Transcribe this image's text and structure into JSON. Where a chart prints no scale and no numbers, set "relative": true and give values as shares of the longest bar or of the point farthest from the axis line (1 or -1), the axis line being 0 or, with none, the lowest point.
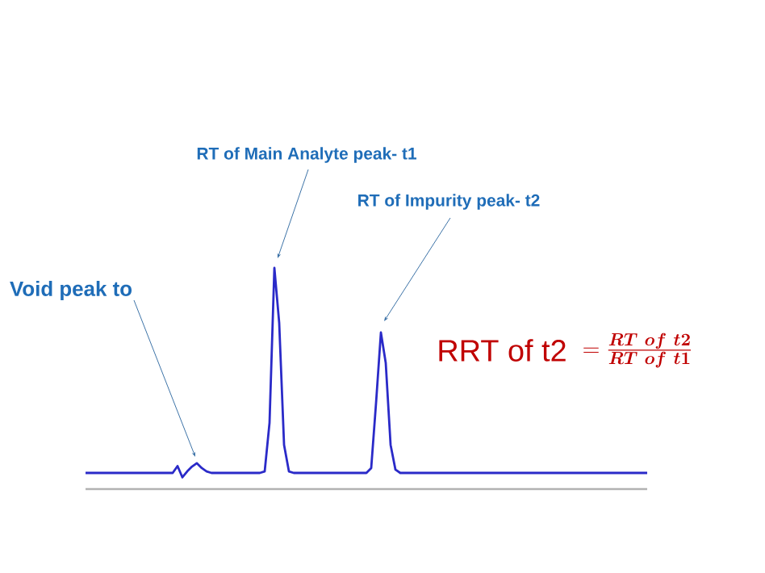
{
  "chart_data": {
    "type": "line",
    "relative": true,
    "color": "#2a2ac8",
    "marker": "none",
    "line_style": "solid",
    "categories": [
      null,
      null,
      null,
      null,
      null,
      null,
      null,
      null,
      null,
      null,
      null,
      null,
      null,
      null,
      null,
      null,
      null,
      null,
      null,
      null,
      null,
      null,
      null,
      null,
      null,
      null,
      null,
      null,
      null,
      null,
      null,
      null,
      null,
      null,
      null,
      null,
      null,
      null,
      null,
      null,
      null,
      null,
      null,
      null,
      null,
      null,
      null,
      null,
      null,
      null,
      null,
      null,
      null,
      null,
      null,
      null,
      null,
      null,
      null,
      null,
      null,
      null,
      null,
      null,
      null,
      null,
      null,
      null,
      null,
      null,
      null,
      null,
      null,
      null,
      null,
      null,
      null,
      null,
      null,
      null,
      null,
      null,
      null,
      null,
      null,
      null,
      null,
      null,
      null,
      null,
      null,
      null,
      null,
      null,
      null,
      null,
      null,
      null,
      null,
      null,
      null,
      null,
      null,
      null,
      null,
      null,
      null,
      null,
      null,
      null,
      null,
      null,
      null,
      null,
      null,
      null,
      null
    ],
    "values": [
      0.073,
      0.073,
      0.073,
      0.073,
      0.073,
      0.073,
      0.073,
      0.073,
      0.073,
      0.073,
      0.073,
      0.073,
      0.073,
      0.073,
      0.073,
      0.073,
      0.073,
      0.073,
      0.073,
      0.104,
      0.053,
      0.08,
      0.102,
      0.117,
      0.095,
      0.08,
      0.073,
      0.073,
      0.073,
      0.073,
      0.073,
      0.073,
      0.073,
      0.073,
      0.073,
      0.073,
      0.073,
      0.08,
      0.3,
      1.0,
      0.75,
      0.2,
      0.08,
      0.073,
      0.073,
      0.073,
      0.073,
      0.073,
      0.073,
      0.073,
      0.073,
      0.073,
      0.073,
      0.073,
      0.073,
      0.073,
      0.073,
      0.073,
      0.073,
      0.095,
      0.39,
      0.708,
      0.57,
      0.2,
      0.088,
      0.073,
      0.073,
      0.073,
      0.073,
      0.073,
      0.073,
      0.073,
      0.073,
      0.073,
      0.073,
      0.073,
      0.073,
      0.073,
      0.073,
      0.073,
      0.073,
      0.073,
      0.073,
      0.073,
      0.073,
      0.073,
      0.073,
      0.073,
      0.073,
      0.073,
      0.073,
      0.073,
      0.073,
      0.073,
      0.073,
      0.073,
      0.073,
      0.073,
      0.073,
      0.073,
      0.073,
      0.073,
      0.073,
      0.073,
      0.073,
      0.073,
      0.073,
      0.073,
      0.073,
      0.073,
      0.073,
      0.073,
      0.073,
      0.073,
      0.073,
      0.073,
      0.073
    ],
    "annotations": [
      "Void peak to",
      "RT of Main Analyte peak- t1",
      "RT of Impurity peak- t2",
      "RRT of t2",
      "= \\frac{\\boldsymbol{RT\\ of\\ t2}}{\\boldsymbol{RT\\ of\\ t1}}"
    ]
  }
}
